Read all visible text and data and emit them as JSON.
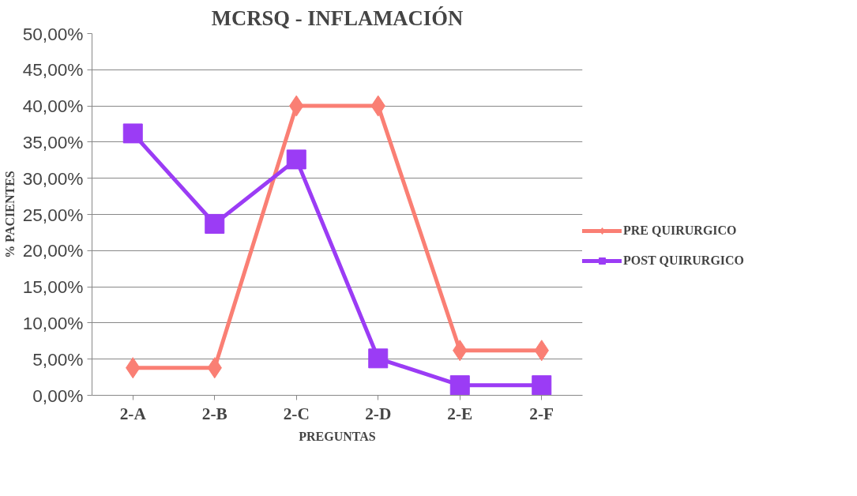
{
  "chart_data": {
    "type": "line",
    "title": "MCRSQ - INFLAMACIÓN",
    "xlabel": "PREGUNTAS",
    "ylabel": "% PACIENTES",
    "categories": [
      "2-A",
      "2-B",
      "2-C",
      "2-D",
      "2-E",
      "2-F"
    ],
    "series": [
      {
        "name": "PRE QUIRURGICO",
        "color": "#fa7f74",
        "marker": "diamond",
        "values": [
          3.8,
          3.8,
          40.0,
          40.0,
          6.2,
          6.2
        ]
      },
      {
        "name": "POST QUIRURGICO",
        "color": "#9b3cf5",
        "marker": "square",
        "values": [
          36.2,
          23.7,
          32.6,
          5.1,
          1.4,
          1.4
        ]
      }
    ],
    "ylim": [
      0,
      50
    ],
    "yticks": [
      {
        "value": 0,
        "label": "0,00%"
      },
      {
        "value": 5,
        "label": "5,00%"
      },
      {
        "value": 10,
        "label": "10,00%"
      },
      {
        "value": 15,
        "label": "15,00%"
      },
      {
        "value": 20,
        "label": "20,00%"
      },
      {
        "value": 25,
        "label": "25,00%"
      },
      {
        "value": 30,
        "label": "30,00%"
      },
      {
        "value": 35,
        "label": "35,00%"
      },
      {
        "value": 40,
        "label": "40,00%"
      },
      {
        "value": 45,
        "label": "45,00%"
      },
      {
        "value": 50,
        "label": "50,00%"
      }
    ],
    "grid": "y",
    "legend": "right",
    "line_style": "solid"
  }
}
